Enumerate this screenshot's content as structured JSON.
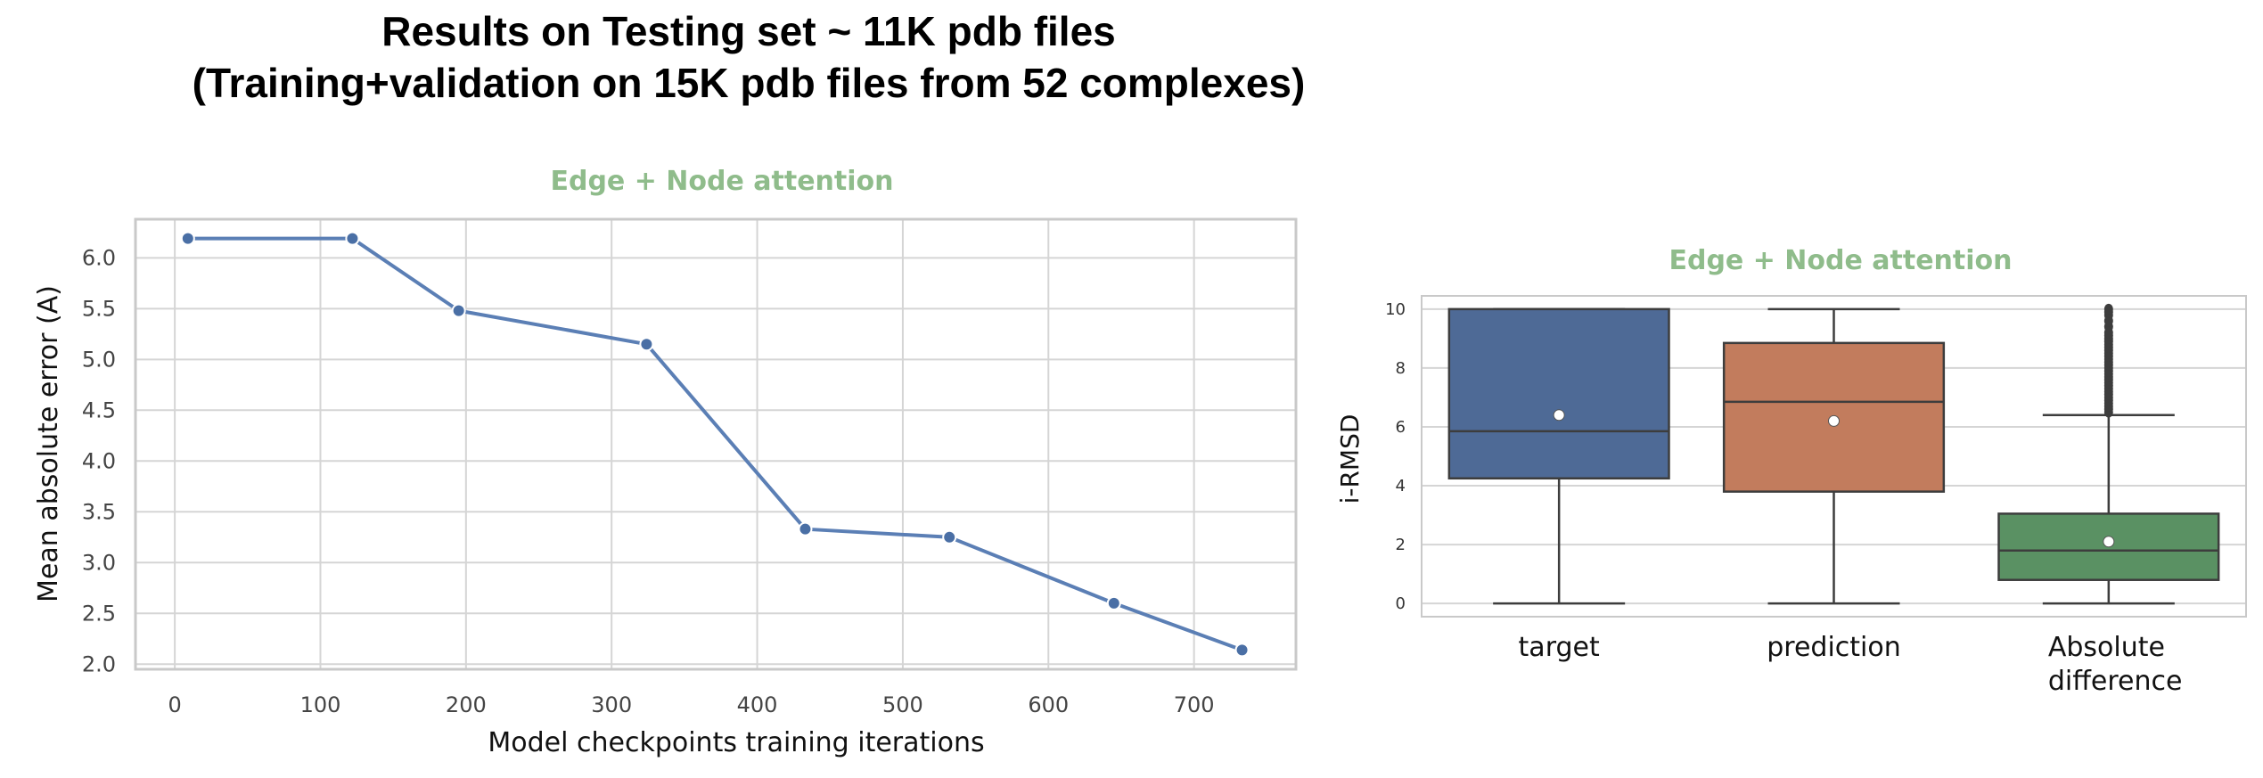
{
  "page": {
    "title_line1": "Results on Testing set ~ 11K pdb files",
    "title_line2": "(Training+validation on 15K pdb files from 52 complexes)"
  },
  "colors": {
    "title_green": "#8fbc8b",
    "line_blue": "#5b7fb5",
    "grid": "#d5d5d5",
    "box_target": "#4e6a96",
    "box_prediction": "#c27c5d",
    "box_difference": "#5a9163"
  },
  "chart_data": [
    {
      "type": "line",
      "title": "Edge + Node attention",
      "xlabel": "Model checkpoints training iterations",
      "ylabel": "Mean absolute error (A)",
      "x": [
        9,
        122,
        195,
        324,
        433,
        532,
        645,
        733
      ],
      "y": [
        6.19,
        6.19,
        5.48,
        5.15,
        3.33,
        3.25,
        2.6,
        2.14
      ],
      "xticks": [
        0,
        100,
        200,
        300,
        400,
        500,
        600,
        700
      ],
      "xtick_labels": [
        "0",
        "100",
        "200",
        "300",
        "400",
        "500",
        "600",
        "700"
      ],
      "yticks": [
        2.0,
        2.5,
        3.0,
        3.5,
        4.0,
        4.5,
        5.0,
        5.5,
        6.0
      ],
      "ytick_labels": [
        "2.0",
        "2.5",
        "3.0",
        "3.5",
        "4.0",
        "4.5",
        "5.0",
        "5.5",
        "6.0"
      ],
      "xlim": [
        -27,
        770
      ],
      "ylim": [
        1.95,
        6.38
      ],
      "grid": true
    },
    {
      "type": "box",
      "title": "Edge + Node attention",
      "ylabel": "i-RMSD",
      "categories": [
        "target",
        "prediction",
        "Absolute difference"
      ],
      "category_lines": [
        [
          "target"
        ],
        [
          "prediction"
        ],
        [
          "Absolute",
          "difference"
        ]
      ],
      "boxes": [
        {
          "min": 0.0,
          "q1": 4.25,
          "median": 5.85,
          "q3": 10.0,
          "max": 10.0,
          "mean": 6.4
        },
        {
          "min": 0.0,
          "q1": 3.8,
          "median": 6.85,
          "q3": 8.85,
          "max": 10.0,
          "mean": 6.2
        },
        {
          "min": 0.0,
          "q1": 0.8,
          "median": 1.8,
          "q3": 3.05,
          "max": 6.4,
          "mean": 2.1,
          "outliers": [
            6.5,
            6.6,
            6.7,
            6.8,
            6.9,
            7.0,
            7.1,
            7.2,
            7.3,
            7.4,
            7.5,
            7.6,
            7.7,
            7.8,
            7.9,
            8.0,
            8.1,
            8.2,
            8.3,
            8.4,
            8.5,
            8.6,
            8.7,
            8.8,
            8.9,
            9.0,
            9.1,
            9.2,
            9.4,
            9.6,
            9.8,
            9.9,
            10.0
          ]
        }
      ],
      "yticks": [
        0,
        2,
        4,
        6,
        8,
        10
      ],
      "ytick_labels": [
        "0",
        "2",
        "4",
        "6",
        "8",
        "10"
      ],
      "ylim": [
        -0.45,
        10.45
      ],
      "grid": true
    }
  ]
}
